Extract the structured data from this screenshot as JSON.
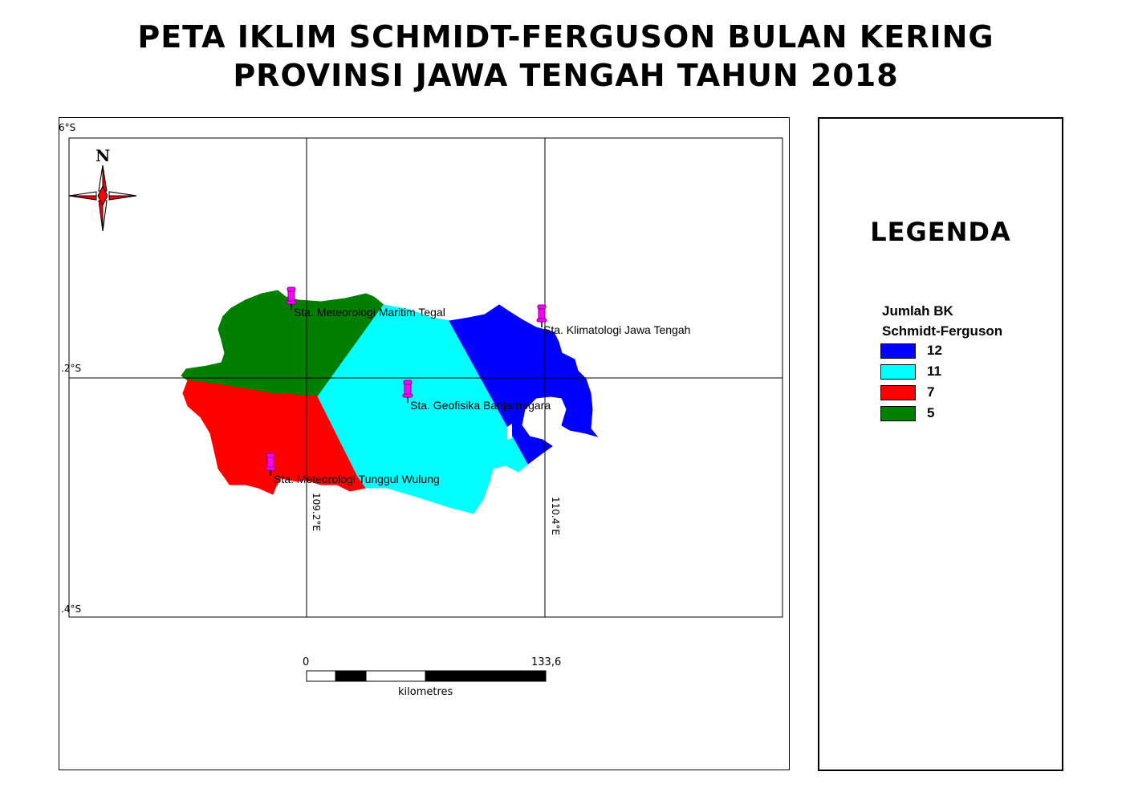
{
  "title": {
    "line1": "PETA IKLIM SCHMIDT-FERGUSON BULAN KERING",
    "line2": "PROVINSI JAWA TENGAH TAHUN 2018"
  },
  "grid": {
    "lat_labels": [
      "6°S",
      ".2°S",
      ".4°S"
    ],
    "lon_labels": [
      "109.2°E",
      "110.4°E"
    ]
  },
  "stations": [
    {
      "name": "Sta. Meteorologi Maritim Tegal"
    },
    {
      "name": "Sta. Klimatologi Jawa Tengah"
    },
    {
      "name": "Sta. Geofisika Banjarnegara"
    },
    {
      "name": "Sta. Meteorologi Tunggul Wulung"
    }
  ],
  "scale_bar": {
    "start": "0",
    "end": "133,6",
    "unit": "kilometres"
  },
  "compass": {
    "north_label": "N"
  },
  "legend": {
    "title": "LEGENDA",
    "heading_line1": "Jumlah BK",
    "heading_line2": "Schmidt-Ferguson",
    "items": [
      {
        "label": "12",
        "color": "#0000ff"
      },
      {
        "label": "11",
        "color": "#00ffff"
      },
      {
        "label": "7",
        "color": "#ff0000"
      },
      {
        "label": "5",
        "color": "#007f00"
      }
    ]
  },
  "colors": {
    "zone_12": "#0000ff",
    "zone_11": "#00ffff",
    "zone_7": "#ff0000",
    "zone_5": "#007f00",
    "marker": "#ff00ff"
  }
}
